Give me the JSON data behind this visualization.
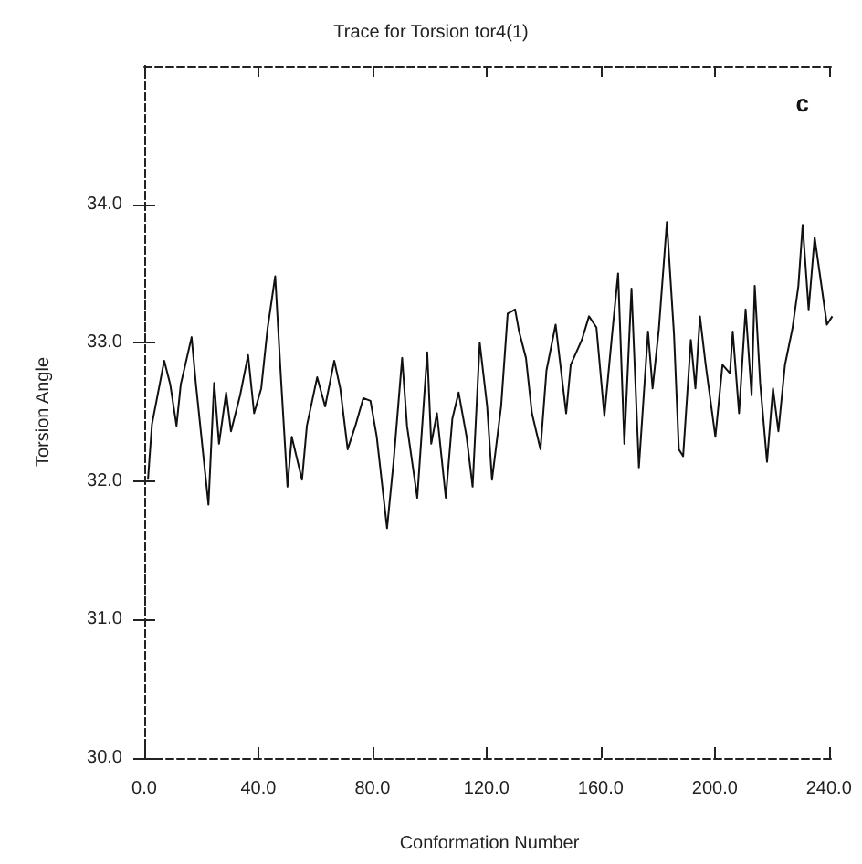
{
  "chart_data": {
    "type": "line",
    "title": "Trace for Torsion tor4(1)",
    "xlabel": "Conformation Number",
    "ylabel": "Torsion Angle",
    "annotations": [
      "c"
    ],
    "xlim": [
      0,
      242
    ],
    "ylim": [
      30,
      35
    ],
    "xticks": [
      {
        "value": 0,
        "label": "0.0"
      },
      {
        "value": 40,
        "label": "40.0"
      },
      {
        "value": 80,
        "label": "80.0"
      },
      {
        "value": 120,
        "label": "120.0"
      },
      {
        "value": 160,
        "label": "160.0"
      },
      {
        "value": 200,
        "label": "200.0"
      },
      {
        "value": 240,
        "label": "240.0"
      }
    ],
    "yticks": [
      {
        "value": 30,
        "label": "30.0"
      },
      {
        "value": 31,
        "label": "31.0"
      },
      {
        "value": 32,
        "label": "32.0"
      },
      {
        "value": 33,
        "label": "33.0"
      },
      {
        "value": 34,
        "label": "34.0"
      }
    ],
    "grid": false,
    "marker": "none",
    "line_style": "solid",
    "series": [
      {
        "color": "#111111",
        "x": [
          1.3,
          2.7,
          7,
          9.1,
          11.3,
          12.8,
          16.6,
          18.1,
          22.5,
          24.5,
          26.2,
          28.7,
          30.4,
          33.6,
          36.4,
          38.5,
          41,
          43.2,
          45.9,
          47.9,
          50.2,
          51.7,
          55.3,
          57,
          60.6,
          63.4,
          66.6,
          68.7,
          71.3,
          74,
          76.8,
          79.3,
          81.5,
          85.1,
          87.4,
          90.4,
          92.1,
          95.7,
          99.2,
          100.6,
          102.6,
          105.7,
          108,
          110.2,
          113,
          115.1,
          117.6,
          120.2,
          121.9,
          125.1,
          127.4,
          130,
          131.4,
          133.8,
          135.9,
          138.9,
          141,
          144.2,
          147.9,
          149.5,
          153.4,
          155.9,
          158.5,
          161.3,
          164,
          166.1,
          168.3,
          170.8,
          173.4,
          176.6,
          178.2,
          180.4,
          183.2,
          185.7,
          187.4,
          188.9,
          191.6,
          193.2,
          194.8,
          196.8,
          200.2,
          202.7,
          205.3,
          206.3,
          208.5,
          210.8,
          212.9,
          214,
          215.9,
          218.3,
          220.4,
          222.3,
          224.6,
          227.2,
          229.3,
          230.8,
          232.9,
          235,
          237.2,
          239.3,
          241.2
        ],
        "values": [
          32.01,
          32.41,
          32.87,
          32.7,
          32.4,
          32.7,
          33.04,
          32.7,
          31.83,
          32.71,
          32.27,
          32.64,
          32.36,
          32.62,
          32.91,
          32.49,
          32.67,
          33.1,
          33.48,
          32.75,
          31.96,
          32.32,
          32.01,
          32.4,
          32.75,
          32.54,
          32.87,
          32.67,
          32.23,
          32.4,
          32.6,
          32.58,
          32.32,
          31.66,
          32.14,
          32.89,
          32.4,
          31.88,
          32.93,
          32.27,
          32.49,
          31.88,
          32.45,
          32.64,
          32.32,
          31.96,
          33.0,
          32.54,
          32.01,
          32.54,
          33.21,
          33.24,
          33.08,
          32.89,
          32.49,
          32.23,
          32.8,
          33.13,
          32.49,
          32.84,
          33.02,
          33.19,
          33.11,
          32.47,
          33.06,
          33.5,
          32.27,
          33.39,
          32.1,
          33.08,
          32.67,
          33.1,
          33.87,
          33.06,
          32.23,
          32.18,
          33.02,
          32.67,
          33.19,
          32.84,
          32.32,
          32.84,
          32.78,
          33.08,
          32.49,
          33.24,
          32.62,
          33.41,
          32.71,
          32.14,
          32.67,
          32.36,
          32.84,
          33.1,
          33.41,
          33.85,
          33.24,
          33.76,
          33.44,
          33.13,
          33.19
        ]
      }
    ]
  }
}
